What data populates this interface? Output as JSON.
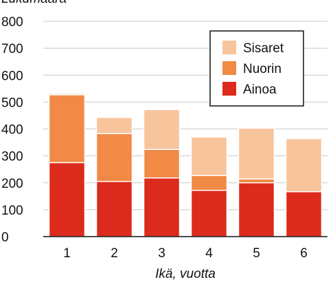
{
  "chart_data": {
    "type": "bar",
    "stacked": true,
    "ylabel": "Lukumäärä",
    "xlabel": "Ikä, vuotta",
    "ylim": [
      0,
      800
    ],
    "yticks": [
      "0",
      "100",
      "200",
      "300",
      "400",
      "500",
      "600",
      "700",
      "800"
    ],
    "categories": [
      "1",
      "2",
      "3",
      "4",
      "5",
      "6"
    ],
    "series": [
      {
        "name": "Ainoa",
        "color": "#dc2b1c",
        "values": [
          275,
          205,
          218,
          172,
          200,
          167
        ]
      },
      {
        "name": "Nuorin",
        "color": "#f08a45",
        "values": [
          252,
          178,
          106,
          55,
          14,
          0
        ]
      },
      {
        "name": "Sisaret",
        "color": "#f8c49c",
        "values": [
          5,
          60,
          148,
          143,
          189,
          197
        ]
      }
    ],
    "legend": {
      "position": "top-right",
      "order": [
        "Sisaret",
        "Nuorin",
        "Ainoa"
      ]
    },
    "grid": "horizontal"
  }
}
